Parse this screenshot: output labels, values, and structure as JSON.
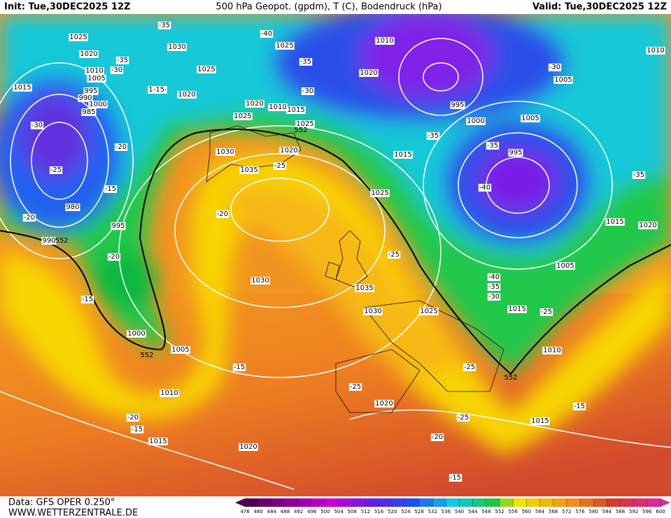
{
  "header": {
    "init": "Init: Tue,30DEC2025 12Z",
    "title": "500 hPa Geopot. (gpdm), T (C), Bodendruck (hPa)",
    "valid": "Valid: Tue,30DEC2025 12Z"
  },
  "footer": {
    "data": "Data: GFS OPER 0.250°",
    "site": "WWW.WETTERZENTRALE.DE"
  },
  "colorbar": {
    "ticks": [
      476,
      480,
      484,
      488,
      492,
      496,
      500,
      504,
      508,
      512,
      516,
      520,
      524,
      528,
      532,
      536,
      540,
      544,
      548,
      552,
      556,
      560,
      564,
      568,
      572,
      576,
      580,
      584,
      588,
      592,
      596,
      600
    ]
  },
  "isobar_labels": [
    "1025",
    "1030",
    "1025",
    "1025",
    "1010",
    "1010",
    "1020",
    "1010",
    "1005",
    "1015",
    "995",
    "990",
    "1000",
    "985",
    "1015",
    "1020",
    "1020",
    "1005",
    "1020",
    "1010",
    "1015",
    "1025",
    "1025",
    "995",
    "1000",
    "1005",
    "1030",
    "1020",
    "1015",
    "995",
    "1035",
    "1025",
    "980",
    "995",
    "1015",
    "1020",
    "990",
    "1030",
    "1035",
    "1005",
    "1030",
    "1025",
    "1015",
    "1000",
    "1005",
    "1010",
    "1010",
    "1020",
    "1015",
    "1015",
    "1020"
  ],
  "temperature_labels": [
    "-35",
    "-40",
    "-35",
    "-30",
    "-35",
    "-30",
    "-15",
    "-30",
    "-30",
    "-20",
    "-35",
    "-35",
    "-25",
    "-25",
    "-15",
    "-40",
    "-35",
    "-20",
    "-20",
    "-20",
    "-25",
    "-40",
    "-35",
    "-30",
    "-15",
    "-25",
    "-15",
    "-25",
    "-25",
    "-15",
    "-20",
    "-15",
    "-25",
    "-20",
    "-15"
  ],
  "geopotential_labels": [
    "552",
    "552",
    "552",
    "552"
  ]
}
